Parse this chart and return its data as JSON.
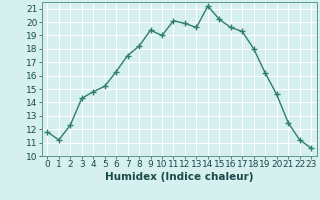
{
  "x": [
    0,
    1,
    2,
    3,
    4,
    5,
    6,
    7,
    8,
    9,
    10,
    11,
    12,
    13,
    14,
    15,
    16,
    17,
    18,
    19,
    20,
    21,
    22,
    23
  ],
  "y": [
    11.8,
    11.2,
    12.3,
    14.3,
    14.8,
    15.2,
    16.3,
    17.5,
    18.2,
    19.4,
    19.0,
    20.1,
    19.9,
    19.6,
    21.2,
    20.2,
    19.6,
    19.3,
    18.0,
    16.2,
    14.6,
    12.5,
    11.2,
    10.6
  ],
  "line_color": "#2e7d6e",
  "marker": "+",
  "marker_size": 4,
  "linewidth": 1.0,
  "xlabel": "Humidex (Indice chaleur)",
  "xlim": [
    -0.5,
    23.5
  ],
  "ylim": [
    10,
    21.5
  ],
  "yticks": [
    10,
    11,
    12,
    13,
    14,
    15,
    16,
    17,
    18,
    19,
    20,
    21
  ],
  "xticks": [
    0,
    1,
    2,
    3,
    4,
    5,
    6,
    7,
    8,
    9,
    10,
    11,
    12,
    13,
    14,
    15,
    16,
    17,
    18,
    19,
    20,
    21,
    22,
    23
  ],
  "bg_color": "#d6efef",
  "grid_color": "#ffffff",
  "tick_fontsize": 6.5,
  "xlabel_fontsize": 7.5
}
